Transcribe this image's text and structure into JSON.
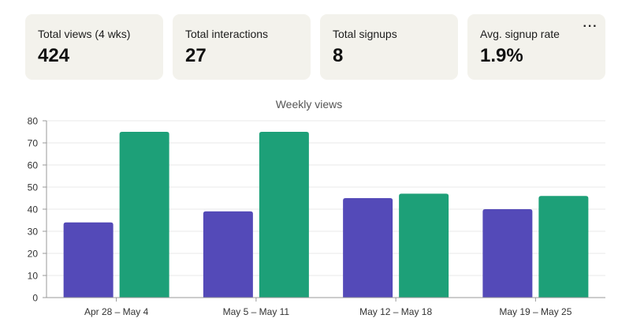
{
  "stats": [
    {
      "label": "Total views (4 wks)",
      "value": "424"
    },
    {
      "label": "Total interactions",
      "value": "27"
    },
    {
      "label": "Total signups",
      "value": "8"
    },
    {
      "label": "Avg. signup rate",
      "value": "1.9%"
    }
  ],
  "more_button": {
    "label": "···",
    "icon": "more-horizontal-icon"
  },
  "chart_data": {
    "type": "bar",
    "title": "Weekly views",
    "xlabel": "",
    "ylabel": "",
    "ylim": [
      0,
      80
    ],
    "y_ticks": [
      0,
      10,
      20,
      30,
      40,
      50,
      60,
      70,
      80
    ],
    "categories": [
      "Apr 28 – May 4",
      "May 5 – May 11",
      "May 12 – May 18",
      "May 19 – May 25"
    ],
    "grid": true,
    "legend": "none",
    "series": [
      {
        "values": [
          34,
          39,
          45,
          40
        ],
        "color": "#544ab8"
      },
      {
        "values": [
          75,
          75,
          47,
          46
        ],
        "color": "#1da078"
      }
    ]
  }
}
